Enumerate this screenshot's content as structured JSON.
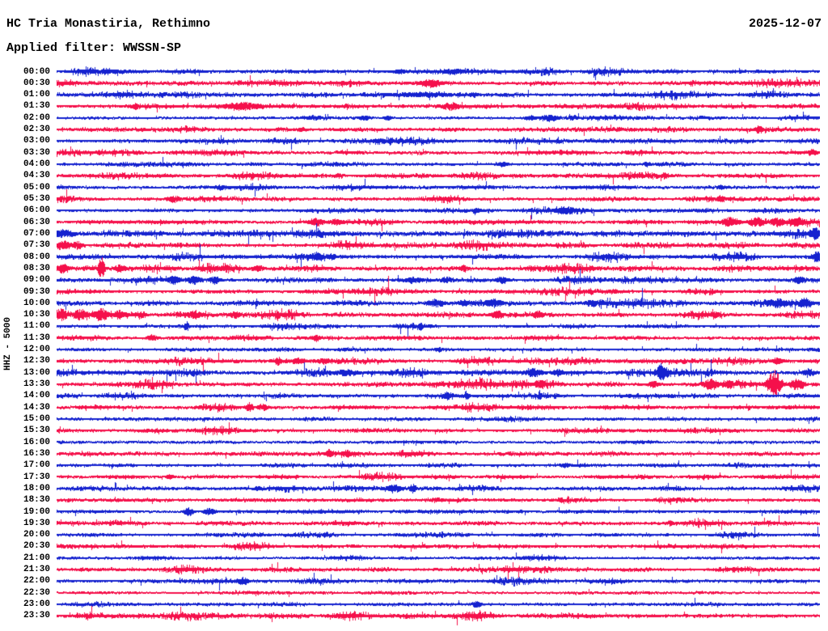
{
  "header": {
    "station_title": "HC Tria Monastiria, Rethimno",
    "date": "2025-12-07",
    "filter_label": "Applied filter: WWSSN-SP"
  },
  "y_axis_label": "HHZ - 5000",
  "colors": {
    "trace_blue": "#1522CF",
    "trace_red": "#F5104B",
    "text": "#000000",
    "background": "#FFFFFF"
  },
  "chart_data": {
    "type": "line",
    "subtype": "helicorder-seismogram",
    "title": "HC Tria Monastiria, Rethimno",
    "date": "2025-12-07",
    "filter": "WWSSN-SP",
    "channel_scale_label": "HHZ - 5000",
    "row_duration_minutes": 30,
    "x_range_minutes": [
      0,
      30
    ],
    "legend": "alternating blue/red half-hour traces, times 00:00-23:30",
    "rows": [
      {
        "time": "00:00",
        "color": "blue",
        "noise": 1.25,
        "events": [
          {
            "m": 2.0,
            "a": 2.5,
            "w": 1.2
          },
          {
            "m": 13.5,
            "a": 3,
            "w": 0.3
          },
          {
            "m": 15.6,
            "a": 3.5,
            "w": 0.5
          }
        ]
      },
      {
        "time": "00:30",
        "color": "red",
        "noise": 0.95,
        "events": [
          {
            "m": 14.7,
            "a": 5,
            "w": 0.45
          }
        ]
      },
      {
        "time": "01:00",
        "color": "blue",
        "noise": 1.2,
        "events": [
          {
            "m": 14.2,
            "a": 2.5,
            "w": 1.5
          },
          {
            "m": 16.4,
            "a": 3,
            "w": 0.2
          }
        ]
      },
      {
        "time": "01:30",
        "color": "red",
        "noise": 1.35,
        "events": [
          {
            "m": 3.1,
            "a": 4.5,
            "w": 0.13
          },
          {
            "m": 7.3,
            "a": 5,
            "w": 0.8
          },
          {
            "m": 15.5,
            "a": 4.5,
            "w": 0.4
          }
        ]
      },
      {
        "time": "02:00",
        "color": "blue",
        "noise": 0.7,
        "events": [
          {
            "m": 10.1,
            "a": 3,
            "w": 0.3
          },
          {
            "m": 12.1,
            "a": 3,
            "w": 0.25
          },
          {
            "m": 13.0,
            "a": 3,
            "w": 0.16
          },
          {
            "m": 18.6,
            "a": 3,
            "w": 0.2
          },
          {
            "m": 19.4,
            "a": 4,
            "w": 0.3
          },
          {
            "m": 20.3,
            "a": 3,
            "w": 0.2
          }
        ]
      },
      {
        "time": "02:30",
        "color": "red",
        "noise": 1.1,
        "events": [
          {
            "m": 9.6,
            "a": 3,
            "w": 0.13
          },
          {
            "m": 27.6,
            "a": 5,
            "w": 0.16
          }
        ]
      },
      {
        "time": "03:00",
        "color": "blue",
        "noise": 1.05,
        "events": [
          {
            "m": 12.7,
            "a": 3,
            "w": 0.3
          }
        ]
      },
      {
        "time": "03:30",
        "color": "red",
        "noise": 1.0,
        "events": [
          {
            "m": 29.7,
            "a": 4,
            "w": 0.2
          }
        ]
      },
      {
        "time": "04:00",
        "color": "blue",
        "noise": 1.0,
        "events": [
          {
            "m": 17.5,
            "a": 3,
            "w": 0.25
          },
          {
            "m": 23.2,
            "a": 3,
            "w": 0.16
          }
        ]
      },
      {
        "time": "04:30",
        "color": "red",
        "noise": 1.05,
        "events": [
          {
            "m": 11.1,
            "a": 3,
            "w": 0.2
          },
          {
            "m": 23.9,
            "a": 4,
            "w": 0.16
          }
        ]
      },
      {
        "time": "05:00",
        "color": "blue",
        "noise": 0.9,
        "events": [
          {
            "m": 6.4,
            "a": 3,
            "w": 0.25
          },
          {
            "m": 26.1,
            "a": 3,
            "w": 0.16
          }
        ]
      },
      {
        "time": "05:30",
        "color": "red",
        "noise": 1.05,
        "events": [
          {
            "m": 4.6,
            "a": 4,
            "w": 0.3
          },
          {
            "m": 26.1,
            "a": 4,
            "w": 0.2
          }
        ]
      },
      {
        "time": "06:00",
        "color": "blue",
        "noise": 1.0,
        "events": [
          {
            "m": 16.5,
            "a": 3,
            "w": 0.2
          },
          {
            "m": 20.0,
            "a": 5,
            "w": 0.45
          }
        ]
      },
      {
        "time": "06:30",
        "color": "red",
        "noise": 1.2,
        "events": [
          {
            "m": 10.2,
            "a": 5,
            "w": 0.3
          },
          {
            "m": 11.0,
            "a": 4,
            "w": 0.25
          },
          {
            "m": 26.5,
            "a": 6,
            "w": 0.38
          },
          {
            "m": 27.5,
            "a": 6,
            "w": 0.3
          },
          {
            "m": 28.3,
            "a": 6,
            "w": 0.3
          },
          {
            "m": 29.1,
            "a": 6,
            "w": 0.3
          }
        ]
      },
      {
        "time": "07:00",
        "color": "blue",
        "noise": 1.7,
        "events": [
          {
            "m": 0.3,
            "a": 5,
            "w": 0.4
          },
          {
            "m": 29.8,
            "a": 8,
            "w": 0.2
          }
        ]
      },
      {
        "time": "07:30",
        "color": "red",
        "noise": 1.3,
        "events": [
          {
            "m": 0.25,
            "a": 6,
            "w": 0.3
          },
          {
            "m": 0.8,
            "a": 5,
            "w": 0.25
          }
        ]
      },
      {
        "time": "08:00",
        "color": "blue",
        "noise": 1.2,
        "events": [
          {
            "m": 10.2,
            "a": 5,
            "w": 0.3
          },
          {
            "m": 10.8,
            "a": 4,
            "w": 0.2
          },
          {
            "m": 29.9,
            "a": 7,
            "w": 0.25
          }
        ]
      },
      {
        "time": "08:30",
        "color": "red",
        "noise": 1.55,
        "events": [
          {
            "m": 0.25,
            "a": 6,
            "w": 0.3
          },
          {
            "m": 1.75,
            "a": 14,
            "w": 0.13
          },
          {
            "m": 2.5,
            "a": 5,
            "w": 0.25
          },
          {
            "m": 7.9,
            "a": 4,
            "w": 0.25
          },
          {
            "m": 16.0,
            "a": 4,
            "w": 0.2
          }
        ]
      },
      {
        "time": "09:00",
        "color": "blue",
        "noise": 1.2,
        "events": [
          {
            "m": 4.6,
            "a": 5,
            "w": 0.25
          },
          {
            "m": 5.4,
            "a": 5,
            "w": 0.3
          },
          {
            "m": 6.2,
            "a": 5,
            "w": 0.25
          },
          {
            "m": 14.0,
            "a": 4,
            "w": 0.3
          },
          {
            "m": 15.3,
            "a": 4,
            "w": 0.25
          },
          {
            "m": 17.5,
            "a": 4,
            "w": 0.3
          },
          {
            "m": 29.2,
            "a": 5,
            "w": 0.25
          }
        ]
      },
      {
        "time": "09:30",
        "color": "red",
        "noise": 1.0,
        "events": [
          {
            "m": 21.9,
            "a": 3,
            "w": 0.2
          }
        ]
      },
      {
        "time": "10:00",
        "color": "blue",
        "noise": 1.3,
        "events": [
          {
            "m": 14.9,
            "a": 5,
            "w": 0.38
          },
          {
            "m": 16.0,
            "a": 4,
            "w": 0.25
          },
          {
            "m": 17.2,
            "a": 5,
            "w": 0.38
          },
          {
            "m": 21.0,
            "a": 4,
            "w": 0.25
          },
          {
            "m": 28.3,
            "a": 6,
            "w": 0.38
          },
          {
            "m": 29.4,
            "a": 6,
            "w": 0.3
          }
        ]
      },
      {
        "time": "10:30",
        "color": "red",
        "noise": 1.35,
        "events": [
          {
            "m": 0.16,
            "a": 8,
            "w": 0.25
          },
          {
            "m": 0.95,
            "a": 7,
            "w": 0.3
          },
          {
            "m": 1.75,
            "a": 8,
            "w": 0.3
          },
          {
            "m": 2.5,
            "a": 6,
            "w": 0.25
          },
          {
            "m": 3.3,
            "a": 5,
            "w": 0.2
          },
          {
            "m": 5.4,
            "a": 5,
            "w": 0.3
          },
          {
            "m": 7.0,
            "a": 4,
            "w": 0.25
          },
          {
            "m": 17.3,
            "a": 5,
            "w": 0.25
          },
          {
            "m": 18.9,
            "a": 5,
            "w": 0.2
          },
          {
            "m": 25.9,
            "a": 4,
            "w": 0.2
          }
        ]
      },
      {
        "time": "11:00",
        "color": "blue",
        "noise": 0.9,
        "events": [
          {
            "m": 5.1,
            "a": 6,
            "w": 0.1
          },
          {
            "m": 14.3,
            "a": 5,
            "w": 0.1
          }
        ]
      },
      {
        "time": "11:30",
        "color": "red",
        "noise": 1.1,
        "events": [
          {
            "m": 3.75,
            "a": 4,
            "w": 0.2
          },
          {
            "m": 10.2,
            "a": 4,
            "w": 0.16
          }
        ]
      },
      {
        "time": "12:00",
        "color": "blue",
        "noise": 0.8,
        "events": [
          {
            "m": 15.0,
            "a": 3,
            "w": 0.16
          }
        ]
      },
      {
        "time": "12:30",
        "color": "red",
        "noise": 1.1,
        "events": [
          {
            "m": 8.7,
            "a": 5,
            "w": 0.13
          },
          {
            "m": 9.5,
            "a": 4,
            "w": 0.3
          },
          {
            "m": 10.5,
            "a": 4,
            "w": 0.25
          },
          {
            "m": 28.3,
            "a": 4,
            "w": 0.25
          }
        ]
      },
      {
        "time": "13:00",
        "color": "blue",
        "noise": 1.5,
        "events": [
          {
            "m": 11.4,
            "a": 4,
            "w": 0.5
          },
          {
            "m": 18.75,
            "a": 5,
            "w": 0.38
          },
          {
            "m": 19.7,
            "a": 4,
            "w": 0.25
          },
          {
            "m": 23.8,
            "a": 13,
            "w": 0.22
          },
          {
            "m": 29.55,
            "a": 5,
            "w": 0.25
          }
        ]
      },
      {
        "time": "13:30",
        "color": "red",
        "noise": 1.4,
        "events": [
          {
            "m": 19.0,
            "a": 5,
            "w": 0.25
          },
          {
            "m": 23.45,
            "a": 5,
            "w": 0.2
          },
          {
            "m": 25.7,
            "a": 7,
            "w": 0.3
          },
          {
            "m": 26.4,
            "a": 5,
            "w": 0.25
          },
          {
            "m": 28.2,
            "a": 17,
            "w": 0.28
          },
          {
            "m": 29.1,
            "a": 7,
            "w": 0.3
          }
        ]
      },
      {
        "time": "14:00",
        "color": "blue",
        "noise": 1.0,
        "events": [
          {
            "m": 15.35,
            "a": 5,
            "w": 0.2
          },
          {
            "m": 16.1,
            "a": 6,
            "w": 0.1
          }
        ]
      },
      {
        "time": "14:30",
        "color": "red",
        "noise": 1.1,
        "events": [
          {
            "m": 7.56,
            "a": 6,
            "w": 0.16
          },
          {
            "m": 8.1,
            "a": 4,
            "w": 0.25
          }
        ]
      },
      {
        "time": "15:00",
        "color": "blue",
        "noise": 0.7,
        "events": []
      },
      {
        "time": "15:30",
        "color": "red",
        "noise": 1.0,
        "events": []
      },
      {
        "time": "16:00",
        "color": "blue",
        "noise": 0.65,
        "events": []
      },
      {
        "time": "16:30",
        "color": "red",
        "noise": 1.0,
        "events": [
          {
            "m": 10.7,
            "a": 5,
            "w": 0.16
          },
          {
            "m": 11.4,
            "a": 5,
            "w": 0.2
          }
        ]
      },
      {
        "time": "17:00",
        "color": "blue",
        "noise": 0.9,
        "events": [
          {
            "m": 20.0,
            "a": 3,
            "w": 0.16
          }
        ]
      },
      {
        "time": "17:30",
        "color": "red",
        "noise": 1.0,
        "events": [
          {
            "m": 4.45,
            "a": 3,
            "w": 0.16
          }
        ]
      },
      {
        "time": "18:00",
        "color": "blue",
        "noise": 1.1,
        "events": [
          {
            "m": 7.9,
            "a": 3,
            "w": 0.16
          },
          {
            "m": 13.25,
            "a": 5,
            "w": 0.3
          },
          {
            "m": 14.0,
            "a": 6,
            "w": 0.13
          }
        ]
      },
      {
        "time": "18:30",
        "color": "red",
        "noise": 1.0,
        "events": []
      },
      {
        "time": "19:00",
        "color": "blue",
        "noise": 0.9,
        "events": [
          {
            "m": 5.2,
            "a": 5,
            "w": 0.2
          },
          {
            "m": 6.0,
            "a": 4,
            "w": 0.25
          }
        ]
      },
      {
        "time": "19:30",
        "color": "red",
        "noise": 1.1,
        "events": [
          {
            "m": 24.1,
            "a": 3,
            "w": 0.13
          }
        ]
      },
      {
        "time": "20:00",
        "color": "blue",
        "noise": 0.8,
        "events": []
      },
      {
        "time": "20:30",
        "color": "red",
        "noise": 1.1,
        "events": []
      },
      {
        "time": "21:00",
        "color": "blue",
        "noise": 0.7,
        "events": []
      },
      {
        "time": "21:30",
        "color": "red",
        "noise": 0.95,
        "events": []
      },
      {
        "time": "22:00",
        "color": "blue",
        "noise": 1.1,
        "events": [
          {
            "m": 7.3,
            "a": 5,
            "w": 0.25
          }
        ]
      },
      {
        "time": "22:30",
        "color": "red",
        "noise": 0.6,
        "events": []
      },
      {
        "time": "23:00",
        "color": "blue",
        "noise": 0.7,
        "events": [
          {
            "m": 16.5,
            "a": 4,
            "w": 0.2
          }
        ]
      },
      {
        "time": "23:30",
        "color": "red",
        "noise": 1.3,
        "events": []
      }
    ]
  }
}
